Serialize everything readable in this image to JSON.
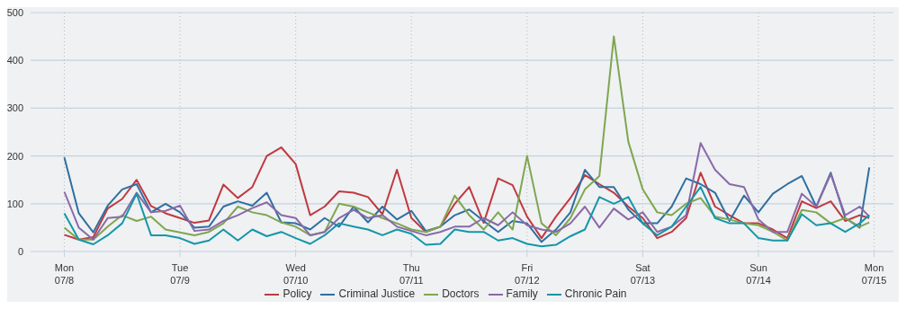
{
  "chart_data": {
    "type": "line",
    "x": [
      "--07-08T00:00",
      "--07-08T03:00",
      "--07-08T06:00",
      "--07-08T09:00",
      "--07-08T12:00",
      "--07-08T15:00",
      "--07-08T18:00",
      "--07-08T21:00",
      "--07-09T00:00",
      "--07-09T03:00",
      "--07-09T06:00",
      "--07-09T09:00",
      "--07-09T12:00",
      "--07-09T15:00",
      "--07-09T18:00",
      "--07-09T21:00",
      "--07-10T00:00",
      "--07-10T03:00",
      "--07-10T06:00",
      "--07-10T09:00",
      "--07-10T12:00",
      "--07-10T15:00",
      "--07-10T18:00",
      "--07-10T21:00",
      "--07-11T00:00",
      "--07-11T03:00",
      "--07-11T06:00",
      "--07-11T09:00",
      "--07-11T12:00",
      "--07-11T15:00",
      "--07-11T18:00",
      "--07-11T21:00",
      "--07-12T00:00",
      "--07-12T03:00",
      "--07-12T06:00",
      "--07-12T09:00",
      "--07-12T12:00",
      "--07-12T15:00",
      "--07-12T18:00",
      "--07-12T21:00",
      "--07-13T00:00",
      "--07-13T03:00",
      "--07-13T06:00",
      "--07-13T09:00",
      "--07-13T12:00",
      "--07-13T15:00",
      "--07-13T18:00",
      "--07-13T21:00",
      "--07-14T00:00",
      "--07-14T03:00",
      "--07-14T06:00",
      "--07-14T09:00",
      "--07-14T12:00",
      "--07-14T15:00",
      "--07-14T18:00",
      "--07-14T21:00",
      "--07-14T23:00"
    ],
    "series": [
      {
        "name": "Policy",
        "color": "#c0393f",
        "values": [
          35,
          25,
          30,
          90,
          110,
          150,
          95,
          80,
          70,
          60,
          65,
          140,
          112,
          135,
          200,
          218,
          183,
          76,
          94,
          126,
          123,
          114,
          78,
          171,
          70,
          41,
          52,
          100,
          135,
          60,
          153,
          139,
          73,
          28,
          73,
          112,
          160,
          141,
          123,
          94,
          70,
          28,
          41,
          70,
          165,
          94,
          76,
          59,
          59,
          46,
          28,
          105,
          91,
          105,
          64,
          76,
          70
        ]
      },
      {
        "name": "Criminal Justice",
        "color": "#2f6fa0",
        "values": [
          197,
          80,
          40,
          96,
          130,
          141,
          82,
          100,
          82,
          50,
          52,
          94,
          105,
          96,
          123,
          61,
          59,
          46,
          70,
          52,
          94,
          61,
          94,
          67,
          85,
          43,
          52,
          76,
          88,
          64,
          41,
          64,
          59,
          20,
          46,
          82,
          171,
          135,
          135,
          88,
          59,
          59,
          94,
          153,
          141,
          123,
          64,
          117,
          82,
          121,
          141,
          158,
          94,
          165,
          70,
          50,
          176
        ]
      },
      {
        "name": "Doctors",
        "color": "#7fa650",
        "values": [
          50,
          25,
          25,
          52,
          76,
          64,
          73,
          46,
          40,
          34,
          41,
          59,
          94,
          82,
          76,
          61,
          52,
          34,
          41,
          100,
          94,
          82,
          70,
          59,
          46,
          41,
          52,
          117,
          76,
          46,
          82,
          46,
          200,
          59,
          34,
          70,
          130,
          158,
          450,
          230,
          130,
          82,
          76,
          100,
          112,
          73,
          67,
          59,
          55,
          41,
          23,
          87,
          82,
          59,
          70,
          52,
          61
        ]
      },
      {
        "name": "Family",
        "color": "#8a6aa6",
        "values": [
          125,
          50,
          25,
          70,
          73,
          123,
          82,
          85,
          96,
          43,
          46,
          64,
          76,
          91,
          103,
          76,
          70,
          34,
          41,
          70,
          87,
          70,
          76,
          52,
          43,
          34,
          41,
          52,
          52,
          70,
          55,
          82,
          55,
          46,
          41,
          59,
          94,
          50,
          90,
          67,
          82,
          41,
          52,
          76,
          227,
          171,
          141,
          135,
          67,
          41,
          41,
          121,
          94,
          162,
          76,
          94,
          73
        ]
      },
      {
        "name": "Chronic Pain",
        "color": "#1596a8",
        "values": [
          80,
          25,
          15,
          34,
          59,
          121,
          34,
          34,
          28,
          16,
          23,
          46,
          23,
          46,
          32,
          41,
          28,
          16,
          34,
          59,
          52,
          46,
          34,
          46,
          37,
          14,
          16,
          46,
          41,
          41,
          23,
          28,
          16,
          11,
          14,
          32,
          46,
          114,
          100,
          114,
          59,
          34,
          52,
          94,
          135,
          70,
          59,
          59,
          28,
          23,
          23,
          78,
          55,
          59,
          41,
          59,
          76
        ]
      }
    ],
    "xlim": [
      "--07-07T17:00",
      "--07-15T04:00"
    ],
    "xticks": [
      {
        "value": "--07-08",
        "label": "Mon\n07/8"
      },
      {
        "value": "--07-09",
        "label": "Tue\n07/9"
      },
      {
        "value": "--07-10",
        "label": "Wed\n07/10"
      },
      {
        "value": "--07-11",
        "label": "Thu\n07/11"
      },
      {
        "value": "--07-12",
        "label": "Fri\n07/12"
      },
      {
        "value": "--07-13",
        "label": "Sat\n07/13"
      },
      {
        "value": "--07-14",
        "label": "Sun\n07/14"
      },
      {
        "value": "--07-15",
        "label": "Mon\n07/15"
      }
    ],
    "ylim": [
      0,
      500
    ],
    "yticks": [
      0,
      100,
      200,
      300,
      400,
      500
    ],
    "grid": true,
    "legend": "bottom",
    "marker": "none",
    "line_style": "solid"
  }
}
